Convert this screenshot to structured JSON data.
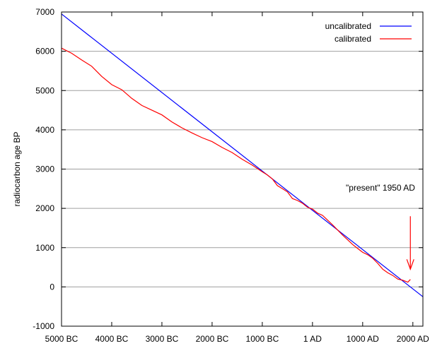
{
  "chart_data": {
    "type": "line",
    "title": "",
    "xlabel": "",
    "ylabel": "radiocarbon age BP",
    "xlim": [
      -5000,
      2200
    ],
    "ylim": [
      -1000,
      7000
    ],
    "x_ticks": [
      -5000,
      -4000,
      -3000,
      -2000,
      -1000,
      0,
      1000,
      2000
    ],
    "x_tick_labels": [
      "5000 BC",
      "4000 BC",
      "3000 BC",
      "2000 BC",
      "1000 BC",
      "1 AD",
      "1000 AD",
      "2000 AD"
    ],
    "y_ticks": [
      -1000,
      0,
      1000,
      2000,
      3000,
      4000,
      5000,
      6000,
      7000
    ],
    "y_tick_labels": [
      "-1000",
      "0",
      "1000",
      "2000",
      "3000",
      "4000",
      "5000",
      "6000",
      "7000"
    ],
    "grid": "horizontal",
    "legend_position": "top-right",
    "series": [
      {
        "name": "uncalibrated",
        "color": "#0000ff",
        "x": [
          -5000,
          2200
        ],
        "y": [
          6950,
          -250
        ]
      },
      {
        "name": "calibrated",
        "color": "#ff0000",
        "x": [
          -5000,
          -4800,
          -4600,
          -4400,
          -4200,
          -4000,
          -3800,
          -3600,
          -3400,
          -3200,
          -3000,
          -2800,
          -2600,
          -2400,
          -2200,
          -2000,
          -1800,
          -1600,
          -1400,
          -1200,
          -1000,
          -900,
          -800,
          -700,
          -600,
          -500,
          -400,
          -300,
          -200,
          -100,
          0,
          100,
          200,
          300,
          400,
          500,
          600,
          700,
          800,
          900,
          1000,
          1100,
          1200,
          1300,
          1400,
          1500,
          1600,
          1700,
          1800,
          1900,
          1950
        ],
        "y": [
          6080,
          5950,
          5780,
          5620,
          5360,
          5150,
          5020,
          4800,
          4620,
          4500,
          4380,
          4200,
          4050,
          3920,
          3800,
          3700,
          3550,
          3420,
          3250,
          3100,
          2930,
          2850,
          2750,
          2580,
          2500,
          2420,
          2250,
          2200,
          2130,
          2030,
          1980,
          1880,
          1820,
          1700,
          1580,
          1450,
          1320,
          1200,
          1080,
          980,
          880,
          820,
          730,
          600,
          450,
          360,
          290,
          200,
          170,
          120,
          190
        ]
      }
    ],
    "annotations": [
      {
        "text": "\"present\" 1950 AD",
        "arrow_x": 1950,
        "arrow_y_from": 1800,
        "arrow_y_to": 450,
        "color": "#ff0000"
      }
    ]
  }
}
